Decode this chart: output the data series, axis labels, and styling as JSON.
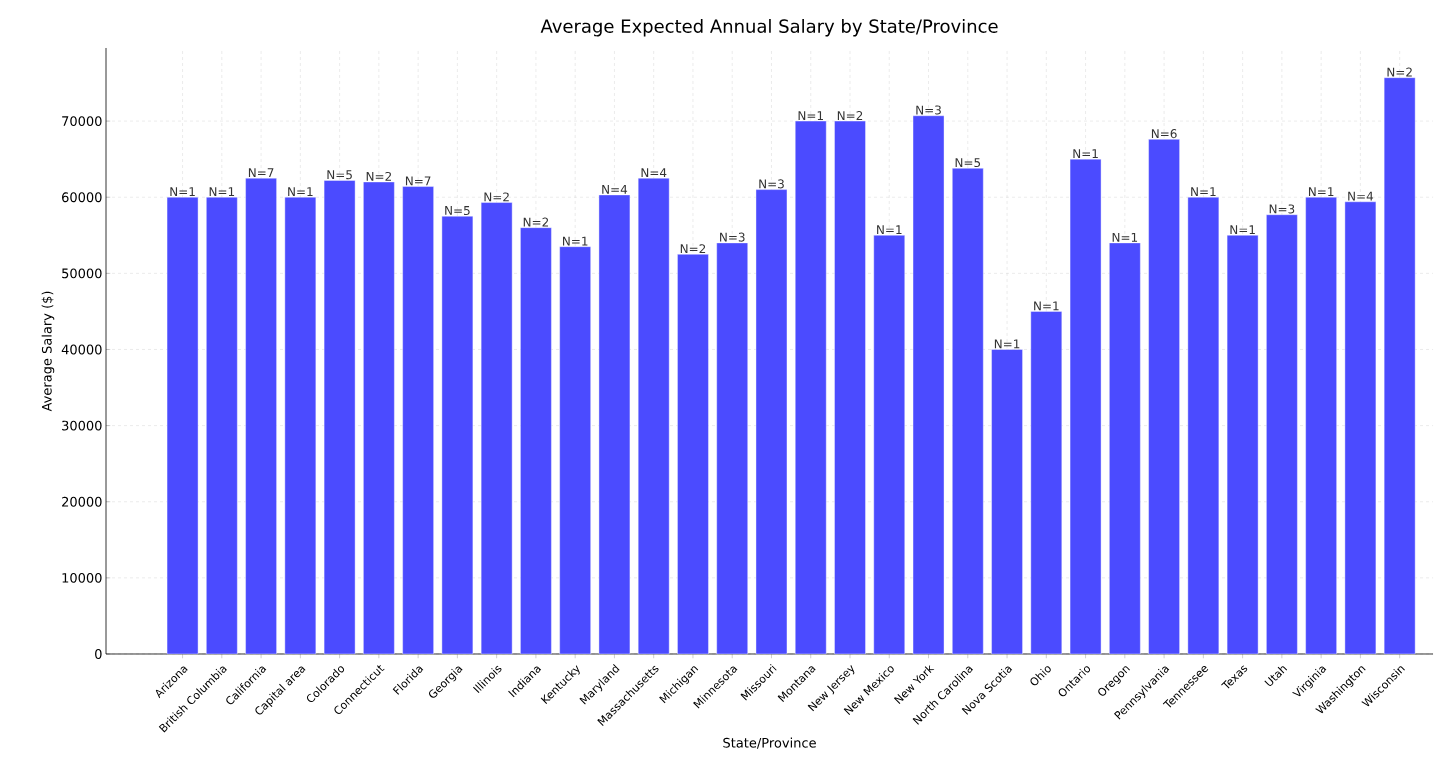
{
  "chart_data": {
    "type": "bar",
    "title": "Average Expected Annual Salary by State/Province",
    "xlabel": "State/Province",
    "ylabel": "Average Salary ($)",
    "categories": [
      "Arizona",
      "British Columbia",
      "California",
      "Capital area",
      "Colorado",
      "Connecticut",
      "Florida",
      "Georgia",
      "Illinois",
      "Indiana",
      "Kentucky",
      "Maryland",
      "Massachusetts",
      "Michigan",
      "Minnesota",
      "Missouri",
      "Montana",
      "New Jersey",
      "New Mexico",
      "New York",
      "North Carolina",
      "Nova Scotia",
      "Ohio",
      "Ontario",
      "Oregon",
      "Pennsylvania",
      "Tennessee",
      "Texas",
      "Utah",
      "Virginia",
      "Washington",
      "Wisconsin"
    ],
    "values": [
      60000,
      60000,
      62500,
      60000,
      62200,
      62000,
      61400,
      57500,
      59300,
      56000,
      53500,
      60300,
      62500,
      52500,
      54000,
      61000,
      70000,
      70000,
      55000,
      70700,
      63800,
      40000,
      45000,
      65000,
      54000,
      67600,
      60000,
      55000,
      57700,
      60000,
      59400,
      75700
    ],
    "annotations": [
      {
        "text": "N=1",
        "x": "Arizona",
        "y": 60000
      },
      {
        "text": "N=1",
        "x": "British Columbia",
        "y": 60000
      },
      {
        "text": "N=7",
        "x": "California",
        "y": 62500
      },
      {
        "text": "N=1",
        "x": "Capital area",
        "y": 60000
      },
      {
        "text": "N=5",
        "x": "Colorado",
        "y": 62200
      },
      {
        "text": "N=2",
        "x": "Connecticut",
        "y": 62000
      },
      {
        "text": "N=7",
        "x": "Florida",
        "y": 61400
      },
      {
        "text": "N=5",
        "x": "Georgia",
        "y": 57500
      },
      {
        "text": "N=2",
        "x": "Illinois",
        "y": 59300
      },
      {
        "text": "N=2",
        "x": "Indiana",
        "y": 56000
      },
      {
        "text": "N=1",
        "x": "Kentucky",
        "y": 53500
      },
      {
        "text": "N=4",
        "x": "Maryland",
        "y": 60300
      },
      {
        "text": "N=4",
        "x": "Massachusetts",
        "y": 62500
      },
      {
        "text": "N=2",
        "x": "Michigan",
        "y": 52500
      },
      {
        "text": "N=3",
        "x": "Minnesota",
        "y": 54000
      },
      {
        "text": "N=3",
        "x": "Missouri",
        "y": 61000
      },
      {
        "text": "N=1",
        "x": "Montana",
        "y": 70000
      },
      {
        "text": "N=2",
        "x": "New Jersey",
        "y": 70000
      },
      {
        "text": "N=1",
        "x": "New Mexico",
        "y": 55000
      },
      {
        "text": "N=3",
        "x": "New York",
        "y": 70700
      },
      {
        "text": "N=5",
        "x": "North Carolina",
        "y": 63800
      },
      {
        "text": "N=1",
        "x": "Nova Scotia",
        "y": 40000
      },
      {
        "text": "N=1",
        "x": "Ohio",
        "y": 45000
      },
      {
        "text": "N=1",
        "x": "Ontario",
        "y": 65000
      },
      {
        "text": "N=1",
        "x": "Oregon",
        "y": 54000
      },
      {
        "text": "N=6",
        "x": "Pennsylvania",
        "y": 67600
      },
      {
        "text": "N=1",
        "x": "Tennessee",
        "y": 60000
      },
      {
        "text": "N=1",
        "x": "Texas",
        "y": 55000
      },
      {
        "text": "N=3",
        "x": "Utah",
        "y": 57700
      },
      {
        "text": "N=1",
        "x": "Virginia",
        "y": 60000
      },
      {
        "text": "N=4",
        "x": "Washington",
        "y": 59400
      },
      {
        "text": "N=2",
        "x": "Wisconsin",
        "y": 75700
      }
    ],
    "color": "#4b4bff",
    "ylim": [
      0,
      79600
    ],
    "yticks": [
      0,
      10000,
      20000,
      30000,
      40000,
      50000,
      60000,
      70000
    ],
    "grid": true
  }
}
